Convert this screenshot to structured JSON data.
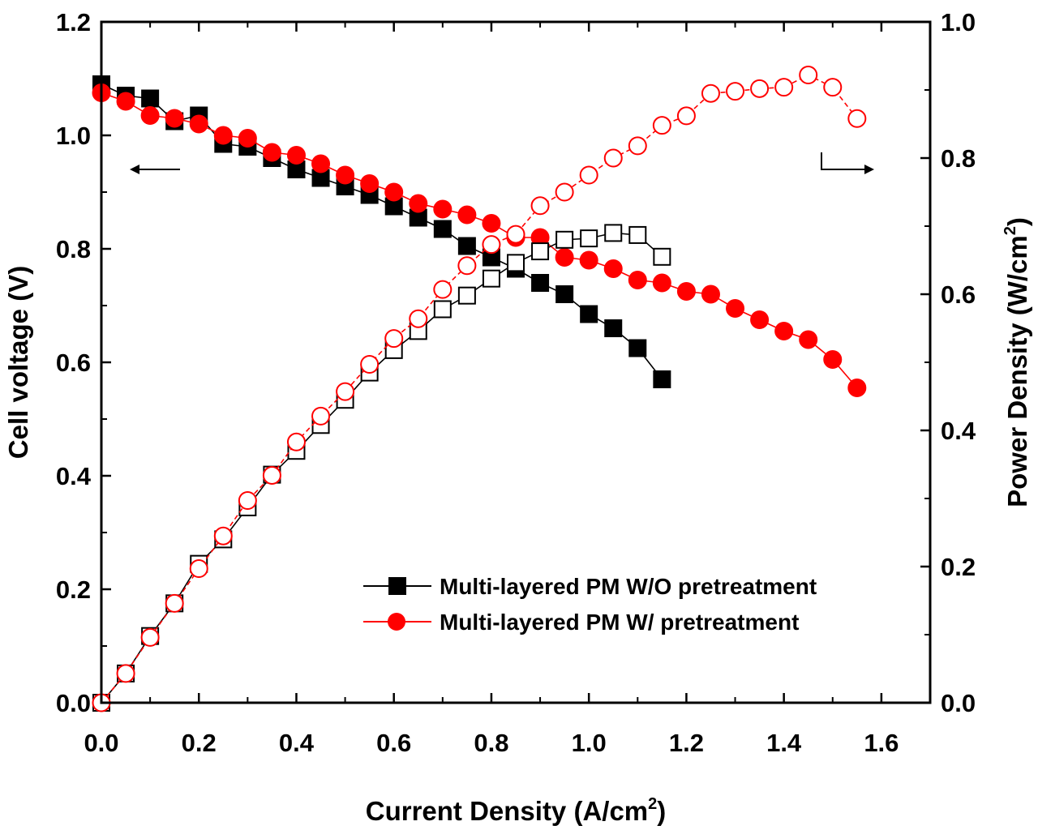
{
  "chart_data": {
    "type": "line",
    "xlabel": "Current Density (A/cm",
    "xlabel_sup": "2",
    "xlabel_end": ")",
    "ylabel_left": "Cell voltage (V)",
    "ylabel_right": "Power Density (W/cm",
    "ylabel_right_sup": "2",
    "ylabel_right_end": ")",
    "xlim": [
      0,
      1.7
    ],
    "ylim_left": [
      0,
      1.2
    ],
    "ylim_right": [
      0,
      1.0
    ],
    "x_ticks": [
      0.0,
      0.2,
      0.4,
      0.6,
      0.8,
      1.0,
      1.2,
      1.4,
      1.6
    ],
    "x_tick_labels": [
      "0.0",
      "0.2",
      "0.4",
      "0.6",
      "0.8",
      "1.0",
      "1.2",
      "1.4",
      "1.6"
    ],
    "y_left_ticks": [
      0.0,
      0.2,
      0.4,
      0.6,
      0.8,
      1.0,
      1.2
    ],
    "y_left_tick_labels": [
      "0.0",
      "0.2",
      "0.4",
      "0.6",
      "0.8",
      "1.0",
      "1.2"
    ],
    "y_right_ticks": [
      0.0,
      0.2,
      0.4,
      0.6,
      0.8,
      1.0
    ],
    "y_right_tick_labels": [
      "0.0",
      "0.2",
      "0.4",
      "0.6",
      "0.8",
      "1.0"
    ],
    "legend": [
      {
        "label": "Multi-layered PM W/O pretreatment",
        "color": "#000000",
        "marker": "square"
      },
      {
        "label": "Multi-layered PM W/ pretreatment",
        "color": "#ff0000",
        "marker": "circle"
      }
    ],
    "legend_position": "bottom-right",
    "series": [
      {
        "name": "Multi-layered PM W/O pretreatment - Voltage",
        "axis": "left",
        "marker": "square",
        "filled": true,
        "color": "#000000",
        "dash": false,
        "x": [
          0.0,
          0.05,
          0.1,
          0.15,
          0.2,
          0.25,
          0.3,
          0.35,
          0.4,
          0.45,
          0.5,
          0.55,
          0.6,
          0.65,
          0.7,
          0.75,
          0.8,
          0.85,
          0.9,
          0.95,
          1.0,
          1.05,
          1.1,
          1.15
        ],
        "y": [
          1.09,
          1.07,
          1.065,
          1.025,
          1.035,
          0.985,
          0.98,
          0.96,
          0.94,
          0.925,
          0.91,
          0.895,
          0.875,
          0.855,
          0.835,
          0.805,
          0.785,
          0.765,
          0.74,
          0.72,
          0.685,
          0.66,
          0.625,
          0.57
        ]
      },
      {
        "name": "Multi-layered PM W/ pretreatment - Voltage",
        "axis": "left",
        "marker": "circle",
        "filled": true,
        "color": "#ff0000",
        "dash": false,
        "x": [
          0.0,
          0.05,
          0.1,
          0.15,
          0.2,
          0.25,
          0.3,
          0.35,
          0.4,
          0.45,
          0.5,
          0.55,
          0.6,
          0.65,
          0.7,
          0.75,
          0.8,
          0.85,
          0.9,
          0.95,
          1.0,
          1.05,
          1.1,
          1.15,
          1.2,
          1.25,
          1.3,
          1.35,
          1.4,
          1.45,
          1.5,
          1.55
        ],
        "y": [
          1.075,
          1.06,
          1.035,
          1.03,
          1.02,
          1.0,
          0.995,
          0.97,
          0.965,
          0.95,
          0.93,
          0.915,
          0.9,
          0.88,
          0.87,
          0.86,
          0.845,
          0.82,
          0.82,
          0.785,
          0.78,
          0.765,
          0.745,
          0.74,
          0.725,
          0.72,
          0.695,
          0.675,
          0.655,
          0.64,
          0.605,
          0.555
        ]
      },
      {
        "name": "Multi-layered PM W/O pretreatment - Power",
        "axis": "right",
        "marker": "square",
        "filled": false,
        "color": "#000000",
        "dash": false,
        "x": [
          0.0,
          0.05,
          0.1,
          0.15,
          0.2,
          0.25,
          0.3,
          0.35,
          0.4,
          0.45,
          0.5,
          0.55,
          0.6,
          0.65,
          0.7,
          0.75,
          0.8,
          0.85,
          0.9,
          0.95,
          1.0,
          1.05,
          1.1,
          1.15
        ],
        "y": [
          0.0,
          0.043,
          0.098,
          0.146,
          0.204,
          0.24,
          0.287,
          0.335,
          0.37,
          0.408,
          0.445,
          0.485,
          0.518,
          0.546,
          0.578,
          0.598,
          0.623,
          0.646,
          0.663,
          0.68,
          0.682,
          0.69,
          0.687,
          0.655
        ]
      },
      {
        "name": "Multi-layered PM W/ pretreatment - Power",
        "axis": "right",
        "marker": "circle",
        "filled": false,
        "color": "#ff0000",
        "dash": true,
        "x": [
          0.0,
          0.05,
          0.1,
          0.15,
          0.2,
          0.25,
          0.3,
          0.35,
          0.4,
          0.45,
          0.5,
          0.55,
          0.6,
          0.65,
          0.7,
          0.75,
          0.8,
          0.85,
          0.9,
          0.95,
          1.0,
          1.05,
          1.1,
          1.15,
          1.2,
          1.25,
          1.3,
          1.35,
          1.4,
          1.45,
          1.5,
          1.55
        ],
        "y": [
          0.0,
          0.043,
          0.096,
          0.146,
          0.197,
          0.245,
          0.297,
          0.334,
          0.383,
          0.421,
          0.457,
          0.497,
          0.535,
          0.564,
          0.607,
          0.642,
          0.673,
          0.688,
          0.73,
          0.75,
          0.775,
          0.8,
          0.818,
          0.848,
          0.862,
          0.895,
          0.898,
          0.902,
          0.904,
          0.922,
          0.904,
          0.858
        ]
      }
    ],
    "annotations": [
      {
        "text": "←",
        "meaning": "arrow pointing to left axis for voltage curves"
      },
      {
        "text": "→",
        "meaning": "arrow pointing to right axis for power density curves"
      }
    ]
  }
}
